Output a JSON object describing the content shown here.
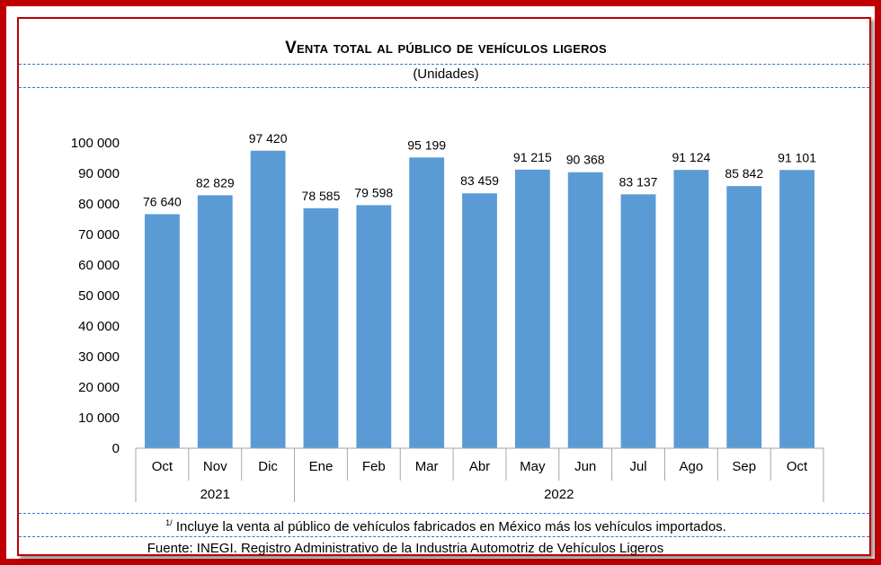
{
  "header": {
    "title": "Venta total al público de vehículos ligeros",
    "subtitle": "(Unidades)"
  },
  "footer": {
    "note_marker": "1/",
    "note": "Incluye la venta al público de vehículos fabricados en México más los vehículos importados.",
    "source": "Fuente: INEGI. Registro Administrativo de la Industria Automotriz de Vehículos Ligeros"
  },
  "colors": {
    "bar": "#5b9bd5",
    "border": "#c00000",
    "dash": "#3a6fd8"
  },
  "chart_data": {
    "type": "bar",
    "title": "Venta total al público de vehículos ligeros",
    "subtitle": "(Unidades)",
    "categories": [
      "Oct",
      "Nov",
      "Dic",
      "Ene",
      "Feb",
      "Mar",
      "Abr",
      "May",
      "Jun",
      "Jul",
      "Ago",
      "Sep",
      "Oct"
    ],
    "values": [
      76640,
      82829,
      97420,
      78585,
      79598,
      95199,
      83459,
      91215,
      90368,
      83137,
      91124,
      85842,
      91101
    ],
    "value_labels": [
      "76 640",
      "82 829",
      "97 420",
      "78 585",
      "79 598",
      "95 199",
      "83 459",
      "91 215",
      "90 368",
      "83 137",
      "91 124",
      "85 842",
      "91 101"
    ],
    "year_groups": [
      {
        "label": "2021",
        "start": 0,
        "count": 3
      },
      {
        "label": "2022",
        "start": 3,
        "count": 10
      }
    ],
    "ylim": [
      0,
      100000
    ],
    "yticks": [
      0,
      10000,
      20000,
      30000,
      40000,
      50000,
      60000,
      70000,
      80000,
      90000,
      100000
    ],
    "ytick_labels": [
      "0",
      "10 000",
      "20 000",
      "30 000",
      "40 000",
      "50 000",
      "60 000",
      "70 000",
      "80 000",
      "90 000",
      "100 000"
    ],
    "xlabel": "",
    "ylabel": "",
    "grid": false,
    "legend": "none"
  }
}
